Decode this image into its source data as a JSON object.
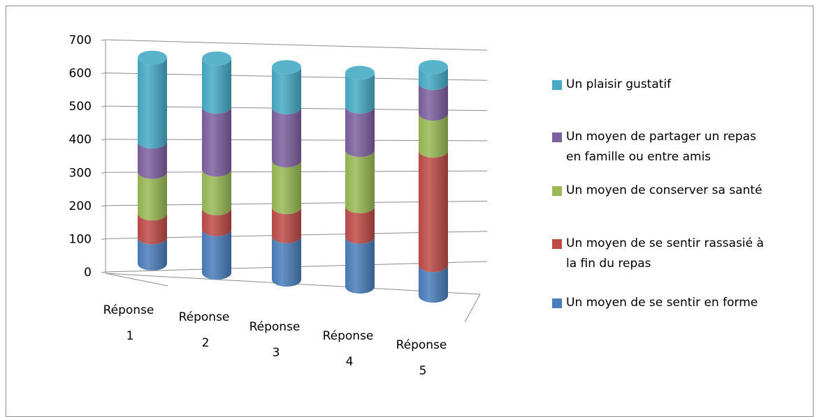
{
  "chart_data": {
    "type": "bar",
    "stacked": true,
    "style": "3d-cylinder",
    "categories": [
      [
        "Réponse",
        "1"
      ],
      [
        "Réponse",
        "2"
      ],
      [
        "Réponse",
        "3"
      ],
      [
        "Réponse",
        "4"
      ],
      [
        "Réponse",
        "5"
      ]
    ],
    "y_ticks": [
      "0",
      "100",
      "200",
      "300",
      "400",
      "500",
      "600",
      "700"
    ],
    "ylim": [
      0,
      700
    ],
    "grid": true,
    "legend_position": "right",
    "series": [
      {
        "name": "Un moyen de se sentir en forme",
        "color": "#4a7ebb",
        "values": [
          82,
          135,
          135,
          155,
          95
        ]
      },
      {
        "name": "Un moyen de se sentir rassasié à la fin du repas",
        "color": "#be4b48",
        "values": [
          75,
          65,
          90,
          95,
          355
        ]
      },
      {
        "name": "Un moyen de conserver sa santé",
        "color": "#98b954",
        "values": [
          130,
          120,
          145,
          175,
          115
        ]
      },
      {
        "name": "Un moyen de partager un repas en famille ou entre amis",
        "color": "#7d60a0",
        "values": [
          95,
          195,
          165,
          135,
          95
        ]
      },
      {
        "name": "Un plaisir gustatif",
        "color": "#46aac5",
        "values": [
          263,
          150,
          125,
          105,
          50
        ]
      }
    ]
  },
  "legend": [
    {
      "lines": [
        "Un plaisir gustatif"
      ],
      "color": "#46aac5"
    },
    {
      "lines": [
        "Un moyen de partager un repas",
        "en famille ou entre amis"
      ],
      "color": "#7d60a0"
    },
    {
      "lines": [
        "Un moyen de conserver sa santé"
      ],
      "color": "#98b954"
    },
    {
      "lines": [
        "Un moyen de se sentir rassasié à",
        "la fin du repas"
      ],
      "color": "#be4b48"
    },
    {
      "lines": [
        "Un moyen de se sentir en forme"
      ],
      "color": "#4a7ebb"
    }
  ]
}
